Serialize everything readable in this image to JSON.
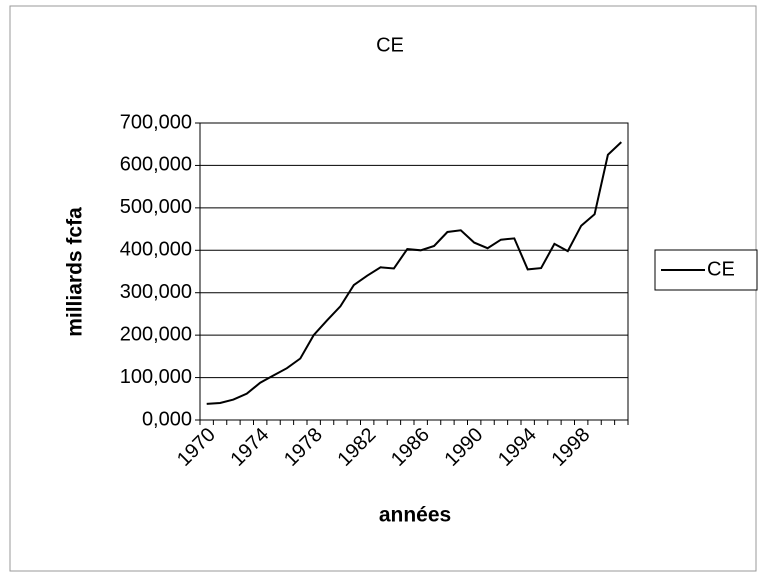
{
  "chart_data": {
    "type": "line",
    "title": "CE",
    "x_label": "années",
    "y_label": "milliards fcfa",
    "categories": [
      "1970",
      null,
      null,
      null,
      "1974",
      null,
      null,
      null,
      "1978",
      null,
      null,
      null,
      "1982",
      null,
      null,
      null,
      "1986",
      null,
      null,
      null,
      "1990",
      null,
      null,
      null,
      "1994",
      null,
      null,
      null,
      "1998",
      null,
      null,
      null
    ],
    "series": [
      {
        "name": "CE",
        "color": "#000000",
        "values": [
          38,
          40,
          48,
          62,
          88,
          105,
          122,
          145,
          200,
          235,
          268,
          318,
          340,
          360,
          357,
          403,
          400,
          410,
          443,
          447,
          418,
          405,
          425,
          428,
          355,
          358,
          415,
          398,
          458,
          485,
          625,
          655
        ]
      }
    ],
    "ylim": [
      0,
      700
    ],
    "yticks": [
      {
        "value": 0,
        "label": "0,000"
      },
      {
        "value": 100,
        "label": "100,000"
      },
      {
        "value": 200,
        "label": "200,000"
      },
      {
        "value": 300,
        "label": "300,000"
      },
      {
        "value": 400,
        "label": "400,000"
      },
      {
        "value": 500,
        "label": "500,000"
      },
      {
        "value": 600,
        "label": "600,000"
      },
      {
        "value": 700,
        "label": "700,000"
      }
    ],
    "grid": true,
    "legend": "right"
  }
}
